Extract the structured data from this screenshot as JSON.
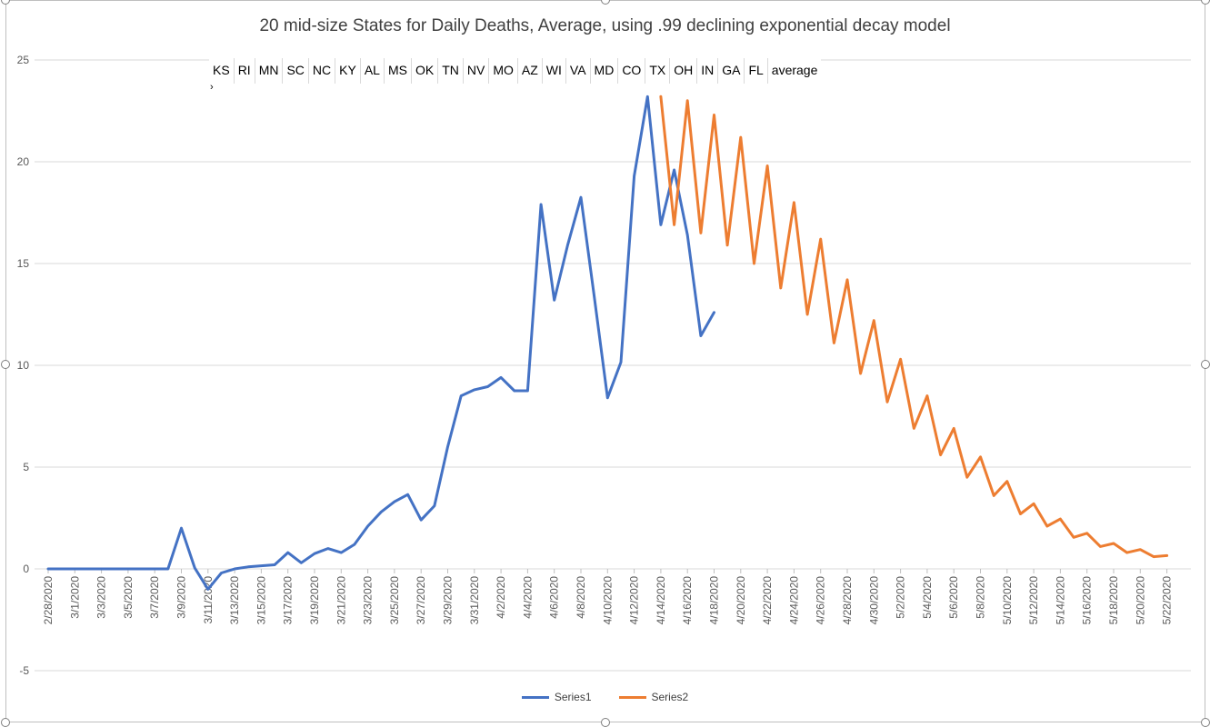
{
  "chart_data": {
    "type": "line",
    "title": "20 mid-size States for Daily Deaths, Average, using .99 declining exponential decay model",
    "xlabel": "",
    "ylabel": "",
    "ylim": [
      -5,
      25
    ],
    "yticks": [
      -5,
      0,
      5,
      10,
      15,
      20,
      25
    ],
    "grid": true,
    "legend_position": "bottom",
    "x": [
      "2/28/2020",
      "2/29/2020",
      "3/1/2020",
      "3/2/2020",
      "3/3/2020",
      "3/4/2020",
      "3/5/2020",
      "3/6/2020",
      "3/7/2020",
      "3/8/2020",
      "3/9/2020",
      "3/10/2020",
      "3/11/2020",
      "3/12/2020",
      "3/13/2020",
      "3/14/2020",
      "3/15/2020",
      "3/16/2020",
      "3/17/2020",
      "3/18/2020",
      "3/19/2020",
      "3/20/2020",
      "3/21/2020",
      "3/22/2020",
      "3/23/2020",
      "3/24/2020",
      "3/25/2020",
      "3/26/2020",
      "3/27/2020",
      "3/28/2020",
      "3/29/2020",
      "3/30/2020",
      "3/31/2020",
      "4/1/2020",
      "4/2/2020",
      "4/3/2020",
      "4/4/2020",
      "4/5/2020",
      "4/6/2020",
      "4/7/2020",
      "4/8/2020",
      "4/9/2020",
      "4/10/2020",
      "4/11/2020",
      "4/12/2020",
      "4/13/2020",
      "4/14/2020",
      "4/15/2020",
      "4/16/2020",
      "4/17/2020",
      "4/18/2020",
      "4/19/2020",
      "4/20/2020",
      "4/21/2020",
      "4/22/2020",
      "4/23/2020",
      "4/24/2020",
      "4/25/2020",
      "4/26/2020",
      "4/27/2020",
      "4/28/2020",
      "4/29/2020",
      "4/30/2020",
      "5/1/2020",
      "5/2/2020",
      "5/3/2020",
      "5/4/2020",
      "5/5/2020",
      "5/6/2020",
      "5/7/2020",
      "5/8/2020",
      "5/9/2020",
      "5/10/2020",
      "5/11/2020",
      "5/12/2020",
      "5/13/2020",
      "5/14/2020",
      "5/15/2020",
      "5/16/2020",
      "5/17/2020",
      "5/18/2020",
      "5/19/2020",
      "5/20/2020",
      "5/21/2020",
      "5/22/2020",
      "5/23/2020"
    ],
    "x_tick_labels": [
      "2/28/2020",
      "3/1/2020",
      "3/3/2020",
      "3/5/2020",
      "3/7/2020",
      "3/9/2020",
      "3/11/2020",
      "3/13/2020",
      "3/15/2020",
      "3/17/2020",
      "3/19/2020",
      "3/21/2020",
      "3/23/2020",
      "3/25/2020",
      "3/27/2020",
      "3/29/2020",
      "3/31/2020",
      "4/2/2020",
      "4/4/2020",
      "4/6/2020",
      "4/8/2020",
      "4/10/2020",
      "4/12/2020",
      "4/14/2020",
      "4/16/2020",
      "4/18/2020",
      "4/20/2020",
      "4/22/2020",
      "4/24/2020",
      "4/26/2020",
      "4/28/2020",
      "4/30/2020",
      "5/2/2020",
      "5/4/2020",
      "5/6/2020",
      "5/8/2020",
      "5/10/2020",
      "5/12/2020",
      "5/14/2020",
      "5/16/2020",
      "5/18/2020",
      "5/20/2020",
      "5/22/2020"
    ],
    "series": [
      {
        "name": "Series1",
        "color": "#4472c4",
        "values": [
          0,
          0,
          0,
          0,
          0,
          0,
          0,
          0,
          0,
          0,
          2.0,
          0.05,
          -1.0,
          -0.2,
          0,
          0.1,
          0.15,
          0.2,
          0.8,
          0.3,
          0.75,
          1.0,
          0.8,
          1.2,
          2.1,
          2.8,
          3.3,
          3.65,
          2.4,
          3.1,
          6.0,
          8.5,
          8.8,
          8.95,
          9.4,
          8.75,
          8.75,
          17.9,
          13.2,
          15.9,
          18.25,
          13.4,
          8.4,
          10.15,
          19.3,
          23.2,
          16.9,
          19.6,
          16.4,
          11.45,
          12.6,
          null,
          null,
          null,
          null,
          null,
          null,
          null,
          null,
          null,
          null,
          null,
          null,
          null,
          null,
          null,
          null,
          null,
          null,
          null,
          null,
          null,
          null,
          null,
          null,
          null,
          null,
          null,
          null,
          null,
          null,
          null,
          null,
          null,
          null,
          null
        ]
      },
      {
        "name": "Series2",
        "color": "#ed7d31",
        "values": [
          null,
          null,
          null,
          null,
          null,
          null,
          null,
          null,
          null,
          null,
          null,
          null,
          null,
          null,
          null,
          null,
          null,
          null,
          null,
          null,
          null,
          null,
          null,
          null,
          null,
          null,
          null,
          null,
          null,
          null,
          null,
          null,
          null,
          null,
          null,
          null,
          null,
          null,
          null,
          null,
          null,
          null,
          null,
          null,
          null,
          null,
          23.2,
          16.9,
          23.0,
          16.5,
          22.3,
          15.9,
          21.2,
          15.0,
          19.8,
          13.8,
          18.0,
          12.5,
          16.2,
          11.1,
          14.2,
          9.6,
          12.2,
          8.2,
          10.3,
          6.9,
          8.5,
          5.6,
          6.9,
          4.5,
          5.5,
          3.6,
          4.3,
          2.7,
          3.2,
          2.1,
          2.45,
          1.55,
          1.75,
          1.1,
          1.25,
          0.8,
          0.95,
          0.6,
          0.65,
          null
        ]
      }
    ]
  },
  "states_strip": [
    "KS",
    "RI",
    "MN",
    "SC",
    "NC",
    "KY",
    "AL",
    "MS",
    "OK",
    "TN",
    "NV",
    "MO",
    "AZ",
    "WI",
    "VA",
    "MD",
    "CO",
    "TX",
    "OH",
    "IN",
    "GA",
    "FL",
    "average"
  ],
  "strip_mark": "›"
}
